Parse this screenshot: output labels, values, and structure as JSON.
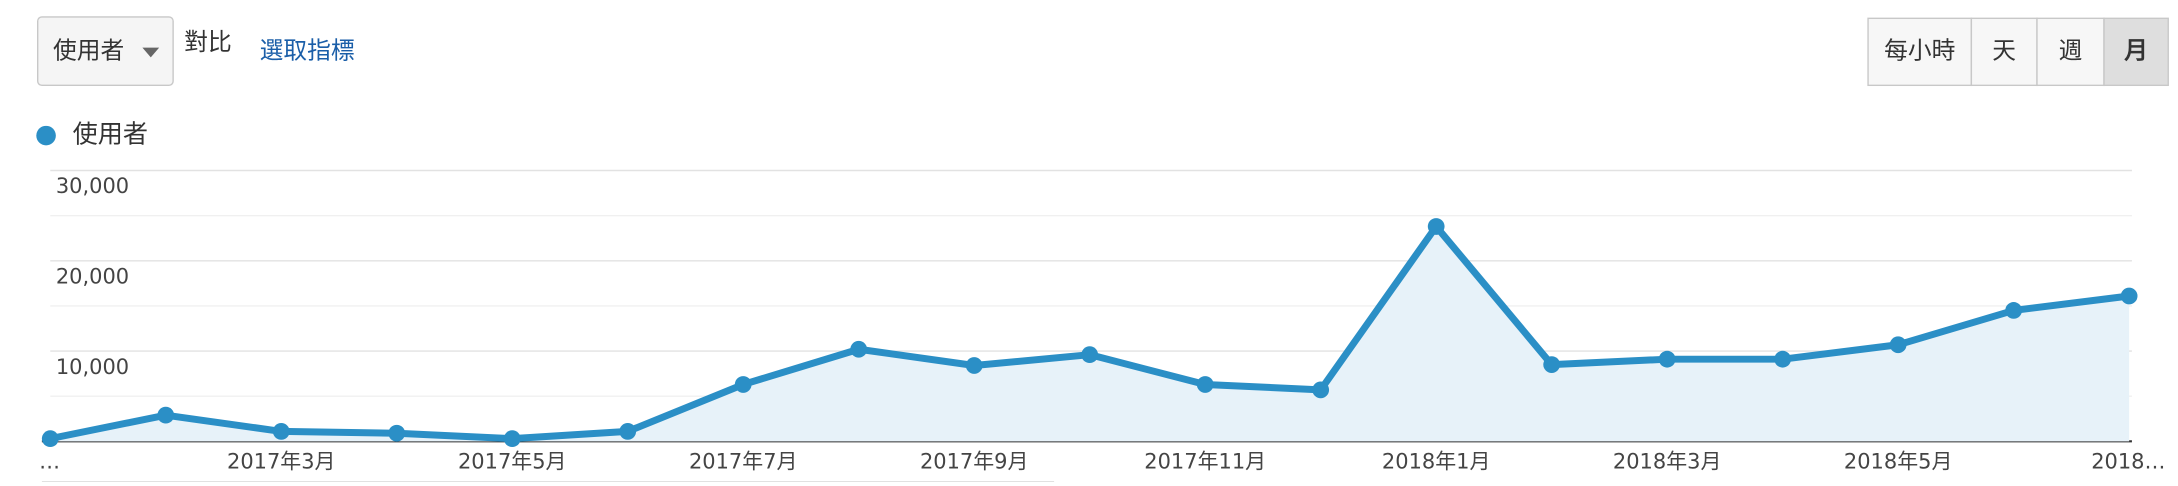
{
  "ui": {
    "metric_dropdown": "使用者",
    "compare": "對比",
    "select_metric": "選取指標",
    "period_buttons": [
      "每小時",
      "天",
      "週",
      "月"
    ],
    "selected_period": 3
  },
  "chart_data": {
    "type": "area-line",
    "series": [
      {
        "name": "使用者",
        "color": "#2b8fc6",
        "values": [
          300,
          2900,
          1100,
          900,
          300,
          1100,
          6300,
          10200,
          8400,
          9600,
          6300,
          5700,
          23800,
          8500,
          9100,
          9100,
          10700,
          14500,
          16100
        ]
      }
    ],
    "categories": [
      "…",
      null,
      "2017年3月",
      null,
      "2017年5月",
      null,
      "2017年7月",
      null,
      "2017年9月",
      null,
      "2017年11月",
      null,
      "2018年1月",
      null,
      "2018年3月",
      null,
      "2018年5月",
      null,
      "2018…"
    ],
    "ylim": [
      0,
      30000
    ],
    "yticks": [
      {
        "value": 10000,
        "label": "10,000"
      },
      {
        "value": 20000,
        "label": "20,000"
      },
      {
        "value": 30000,
        "label": "30,000"
      }
    ],
    "minor_yticks": [
      5000,
      15000,
      25000
    ],
    "grid": true
  }
}
